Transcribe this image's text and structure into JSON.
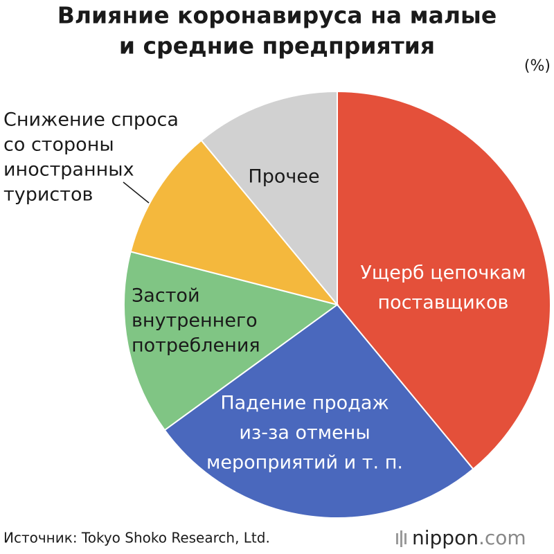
{
  "chart_data": {
    "type": "pie",
    "title": [
      "Влияние коронавируса на малые",
      "и средние предприятия"
    ],
    "unit": "(%)",
    "categories": [
      [
        "Ущерб цепочкам",
        "поставщиков"
      ],
      [
        "Падение продаж",
        "из-за отмены",
        "мероприятий и т. п."
      ],
      [
        "Застой",
        "внутреннего",
        "потребления"
      ],
      [
        "Снижение спроса",
        "со стороны",
        "иностранных",
        "туристов"
      ],
      [
        "Прочее"
      ]
    ],
    "values": [
      39,
      26,
      14,
      10,
      11
    ],
    "colors": [
      "#e4503a",
      "#4a68bd",
      "#80c584",
      "#f4b83d",
      "#d1d1d1"
    ],
    "source": "Источник: Tokyo Shoko Research, Ltd.",
    "logo": {
      "name": "nippon",
      "suffix": ".com"
    }
  }
}
